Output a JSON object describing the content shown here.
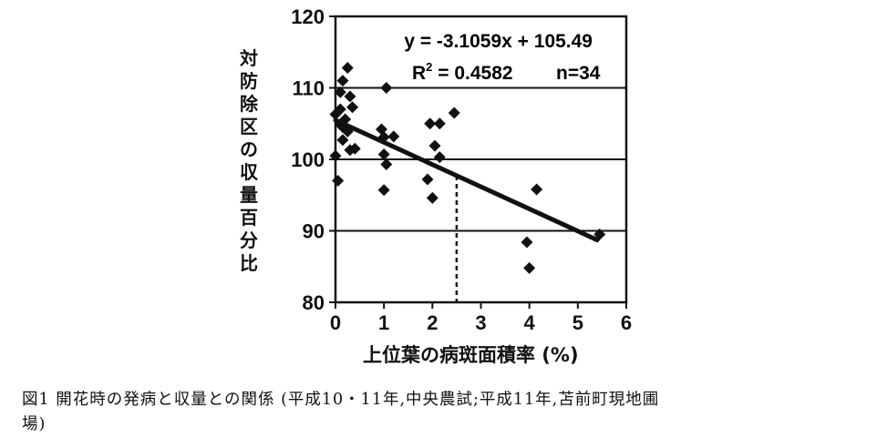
{
  "chart_data": {
    "type": "scatter",
    "ylabel": "対防除区の収量百分比",
    "xlabel": "上位葉の病斑面積率 (%)",
    "xlim": [
      0,
      6
    ],
    "ylim": [
      80,
      120
    ],
    "xticks": [
      "0",
      "1",
      "2",
      "3",
      "4",
      "5",
      "6"
    ],
    "yticks": [
      "80",
      "90",
      "100",
      "110",
      "120"
    ],
    "grid": "horizontal",
    "equation": "y = -3.1059x + 105.49",
    "r2_label": "R",
    "r2_value": " = 0.4582",
    "n_label": "n=34",
    "trendline": {
      "slope": -3.1059,
      "intercept": 105.49,
      "x_start": 0,
      "x_end": 5.4
    },
    "reference_line": {
      "x": 2.5,
      "y_top": 97.7,
      "y_bottom": 80
    },
    "points": [
      [
        0.25,
        112.8
      ],
      [
        0.15,
        111.0
      ],
      [
        0.1,
        109.4
      ],
      [
        0.3,
        108.8
      ],
      [
        0.35,
        107.3
      ],
      [
        0.1,
        107.0
      ],
      [
        0.0,
        106.3
      ],
      [
        0.2,
        105.6
      ],
      [
        0.1,
        104.9
      ],
      [
        0.15,
        104.5
      ],
      [
        0.25,
        103.9
      ],
      [
        0.15,
        102.7
      ],
      [
        0.3,
        101.3
      ],
      [
        0.4,
        101.5
      ],
      [
        0.0,
        100.5
      ],
      [
        0.05,
        97.0
      ],
      [
        1.05,
        110.0
      ],
      [
        0.95,
        104.2
      ],
      [
        1.0,
        103.1
      ],
      [
        1.2,
        103.2
      ],
      [
        1.0,
        100.7
      ],
      [
        1.05,
        99.3
      ],
      [
        1.0,
        95.7
      ],
      [
        1.95,
        105.0
      ],
      [
        2.15,
        105.0
      ],
      [
        2.45,
        106.5
      ],
      [
        2.05,
        101.9
      ],
      [
        2.15,
        100.3
      ],
      [
        1.9,
        97.2
      ],
      [
        2.0,
        94.6
      ],
      [
        4.15,
        95.8
      ],
      [
        3.95,
        88.4
      ],
      [
        4.0,
        84.8
      ],
      [
        5.45,
        89.5
      ]
    ]
  },
  "caption": {
    "line1": "図1 開花時の発病と収量との関係 (平成10・11年,中央農試;平成11年,苫前町現地圃",
    "line2": "場)"
  }
}
